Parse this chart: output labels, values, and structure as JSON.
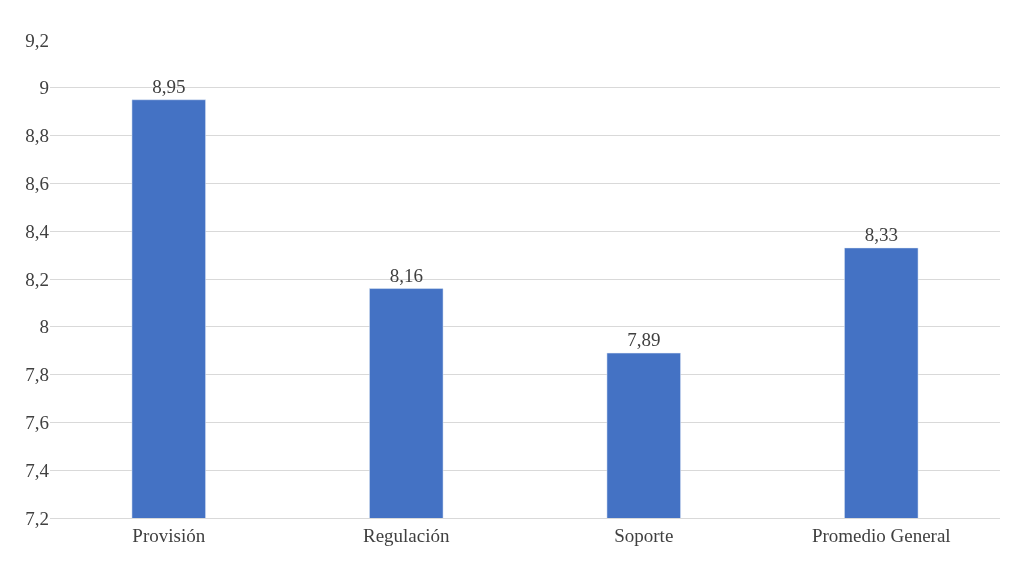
{
  "chart_data": {
    "type": "bar",
    "categories": [
      "Provisión",
      "Regulación",
      "Soporte",
      "Promedio General"
    ],
    "values": [
      8.95,
      8.16,
      7.89,
      8.33
    ],
    "value_labels": [
      "8,95",
      "8,16",
      "7,89",
      "8,33"
    ],
    "color": "#4472c4",
    "ylim": [
      7.2,
      9.2
    ],
    "yticks": [
      {
        "value": 7.2,
        "label": "7,2"
      },
      {
        "value": 7.4,
        "label": "7,4"
      },
      {
        "value": 7.6,
        "label": "7,6"
      },
      {
        "value": 7.8,
        "label": "7,8"
      },
      8,
      {
        "value": 8.2,
        "label": "8,2"
      },
      {
        "value": 8.4,
        "label": "8,4"
      },
      {
        "value": 8.6,
        "label": "8,6"
      },
      {
        "value": 8.8,
        "label": "8,8"
      },
      9,
      {
        "value": 9.2,
        "label": "9,2"
      }
    ],
    "grid": "y"
  }
}
